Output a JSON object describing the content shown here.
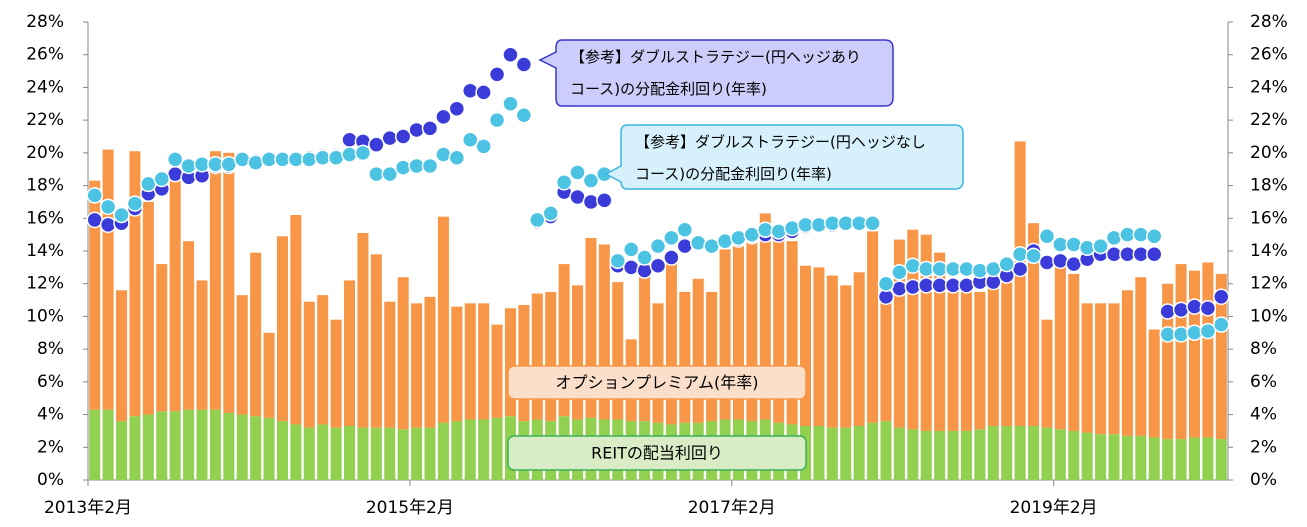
{
  "chart_data": {
    "type": "bar",
    "stacked": true,
    "categories": [
      "2013年2月",
      null,
      null,
      null,
      null,
      null,
      null,
      null,
      null,
      null,
      null,
      null,
      null,
      null,
      null,
      null,
      null,
      null,
      null,
      null,
      null,
      null,
      null,
      null,
      "2015年2月",
      null,
      null,
      null,
      null,
      null,
      null,
      null,
      null,
      null,
      null,
      null,
      null,
      null,
      null,
      null,
      null,
      null,
      null,
      null,
      null,
      null,
      null,
      null,
      "2017年2月",
      null,
      null,
      null,
      null,
      null,
      null,
      null,
      null,
      null,
      null,
      null,
      null,
      null,
      null,
      null,
      null,
      null,
      null,
      null,
      null,
      null,
      null,
      null,
      "2019年2月",
      null,
      null,
      null,
      null,
      null,
      null,
      null,
      null,
      null,
      null,
      null,
      null
    ],
    "ylim": [
      0,
      28
    ],
    "yticks": [
      {
        "value": 0,
        "label": "0%"
      },
      {
        "value": 2,
        "label": "2%"
      },
      {
        "value": 4,
        "label": "4%"
      },
      {
        "value": 6,
        "label": "6%"
      },
      {
        "value": 8,
        "label": "8%"
      },
      {
        "value": 10,
        "label": "10%"
      },
      {
        "value": 12,
        "label": "12%"
      },
      {
        "value": 14,
        "label": "14%"
      },
      {
        "value": 16,
        "label": "16%"
      },
      {
        "value": 18,
        "label": "18%"
      },
      {
        "value": 20,
        "label": "20%"
      },
      {
        "value": 22,
        "label": "22%"
      },
      {
        "value": 24,
        "label": "24%"
      },
      {
        "value": 26,
        "label": "26%"
      },
      {
        "value": 28,
        "label": "28%"
      }
    ],
    "y2lim": [
      0,
      28
    ],
    "y2ticks": [
      {
        "value": 0,
        "label": "0%"
      },
      {
        "value": 2,
        "label": "2%"
      },
      {
        "value": 4,
        "label": "4%"
      },
      {
        "value": 6,
        "label": "6%"
      },
      {
        "value": 8,
        "label": "8%"
      },
      {
        "value": 10,
        "label": "10%"
      },
      {
        "value": 12,
        "label": "12%"
      },
      {
        "value": 14,
        "label": "14%"
      },
      {
        "value": 16,
        "label": "16%"
      },
      {
        "value": 18,
        "label": "18%"
      },
      {
        "value": 20,
        "label": "20%"
      },
      {
        "value": 22,
        "label": "22%"
      },
      {
        "value": 24,
        "label": "24%"
      },
      {
        "value": 26,
        "label": "26%"
      },
      {
        "value": 28,
        "label": "28%"
      }
    ],
    "series": [
      {
        "name": "REITの配当利回り",
        "type": "bar",
        "color": "#92d050",
        "values": [
          4.3,
          4.3,
          3.6,
          3.9,
          4.0,
          4.2,
          4.2,
          4.3,
          4.3,
          4.3,
          4.1,
          4.0,
          3.9,
          3.8,
          3.6,
          3.4,
          3.2,
          3.4,
          3.2,
          3.3,
          3.2,
          3.2,
          3.2,
          3.1,
          3.2,
          3.2,
          3.5,
          3.6,
          3.7,
          3.7,
          3.8,
          3.9,
          3.6,
          3.7,
          3.6,
          3.9,
          3.7,
          3.8,
          3.7,
          3.7,
          3.6,
          3.6,
          3.5,
          3.4,
          3.5,
          3.5,
          3.6,
          3.7,
          3.7,
          3.6,
          3.7,
          3.5,
          3.4,
          3.3,
          3.3,
          3.2,
          3.2,
          3.3,
          3.5,
          3.6,
          3.2,
          3.1,
          3.0,
          3.0,
          3.0,
          3.0,
          3.1,
          3.3,
          3.3,
          3.3,
          3.3,
          3.2,
          3.1,
          3.0,
          2.9,
          2.8,
          2.8,
          2.7,
          2.7,
          2.6,
          2.5,
          2.5,
          2.6,
          2.6,
          2.5
        ]
      },
      {
        "name": "オプションプレミアム(年率)",
        "type": "bar",
        "color": "#f79646",
        "values": [
          14.0,
          15.9,
          8.0,
          16.2,
          13.0,
          9.0,
          14.1,
          10.3,
          7.9,
          15.8,
          15.9,
          7.3,
          10.0,
          5.2,
          11.3,
          12.8,
          7.7,
          7.9,
          6.6,
          8.9,
          11.9,
          10.6,
          7.7,
          9.3,
          7.6,
          8.0,
          12.6,
          7.0,
          7.1,
          7.1,
          5.7,
          6.6,
          7.1,
          7.7,
          7.9,
          9.3,
          8.2,
          11.0,
          10.7,
          8.4,
          5.0,
          10.4,
          7.3,
          9.9,
          8.0,
          8.8,
          7.9,
          10.4,
          10.8,
          11.5,
          12.6,
          11.8,
          11.2,
          9.8,
          9.7,
          9.3,
          8.7,
          9.4,
          11.7,
          8.7,
          11.5,
          12.2,
          12.0,
          10.9,
          8.5,
          8.5,
          8.4,
          8.7,
          9.6,
          17.4,
          12.4,
          6.6,
          10.1,
          9.6,
          7.9,
          8.0,
          8.0,
          8.9,
          9.7,
          6.6,
          9.5,
          10.7,
          10.2,
          10.7,
          10.1
        ]
      },
      {
        "name": "【参考】ダブルストラテジー(円ヘッジありコース)の分配金利回り(年率)",
        "type": "scatter",
        "color": "#3b3bd9",
        "values": [
          15.9,
          15.6,
          15.7,
          16.6,
          17.5,
          17.8,
          18.7,
          18.5,
          18.6,
          19.2,
          19.2,
          19.6,
          19.5,
          19.6,
          19.6,
          19.6,
          19.7,
          19.8,
          19.8,
          20.8,
          20.7,
          20.5,
          20.9,
          21.0,
          21.4,
          21.5,
          22.2,
          22.7,
          23.8,
          23.7,
          24.8,
          26.0,
          25.4,
          15.8,
          16.1,
          17.6,
          17.3,
          17.0,
          17.1,
          13.1,
          13.0,
          12.8,
          13.1,
          13.6,
          14.3,
          14.5,
          14.3,
          14.6,
          14.7,
          14.9,
          15.0,
          15.0,
          15.2,
          15.5,
          15.6,
          15.6,
          15.7,
          15.7,
          15.7,
          11.2,
          11.7,
          11.8,
          11.9,
          11.9,
          11.9,
          11.9,
          12.1,
          12.1,
          12.5,
          12.9,
          14.0,
          13.3,
          13.4,
          13.2,
          13.5,
          13.8,
          13.8,
          13.8,
          13.8,
          13.8,
          10.3,
          10.4,
          10.6,
          10.5,
          11.2
        ]
      },
      {
        "name": "【参考】ダブルストラテジー(円ヘッジなしコース)の分配金利回り(年率)",
        "type": "scatter",
        "color": "#4cc3e3",
        "values": [
          17.4,
          16.7,
          16.2,
          16.9,
          18.1,
          18.4,
          19.6,
          19.2,
          19.3,
          19.3,
          19.3,
          19.6,
          19.4,
          19.6,
          19.6,
          19.6,
          19.6,
          19.7,
          19.7,
          19.9,
          20.0,
          18.7,
          18.7,
          19.1,
          19.2,
          19.2,
          19.9,
          19.7,
          20.8,
          20.4,
          22.0,
          23.0,
          22.3,
          15.9,
          16.3,
          18.2,
          18.8,
          18.3,
          18.7,
          13.4,
          14.1,
          13.6,
          14.3,
          14.8,
          15.3,
          14.5,
          14.3,
          14.6,
          14.8,
          15.0,
          15.3,
          15.2,
          15.4,
          15.6,
          15.6,
          15.7,
          15.7,
          15.7,
          15.7,
          12.0,
          12.7,
          13.1,
          12.9,
          12.9,
          12.9,
          12.9,
          12.8,
          12.9,
          13.2,
          13.8,
          13.7,
          14.9,
          14.4,
          14.4,
          14.2,
          14.3,
          14.8,
          15.0,
          15.0,
          14.9,
          8.9,
          8.9,
          9.0,
          9.1,
          9.5
        ]
      }
    ]
  }
}
